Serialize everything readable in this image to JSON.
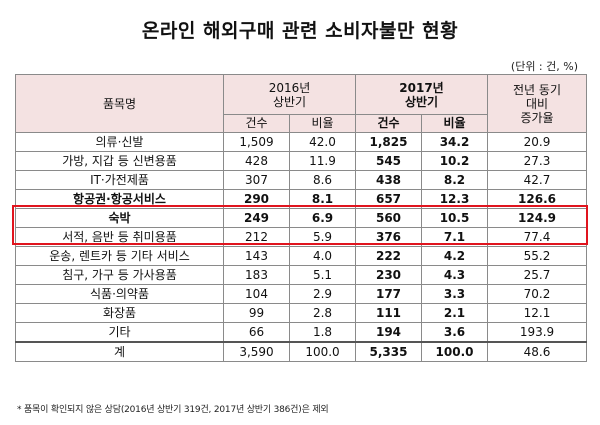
{
  "title": "온라인 해외구매 관련 소비자불만 현황",
  "unit": "(단위 : 건, %)",
  "header": {
    "item": "품목명",
    "period_2016": "2016년\n상반기",
    "period_2017": "2017년\n상반기",
    "growth": "전년 동기\n대비\n증가율",
    "count": "건수",
    "ratio": "비율"
  },
  "rows": [
    {
      "name": "의류·신발",
      "c2016": "1,509",
      "r2016": "42.0",
      "c2017": "1,825",
      "r2017": "34.2",
      "growth": "20.9"
    },
    {
      "name": "가방, 지갑 등 신변용품",
      "c2016": "428",
      "r2016": "11.9",
      "c2017": "545",
      "r2017": "10.2",
      "growth": "27.3"
    },
    {
      "name": "IT·가전제품",
      "c2016": "307",
      "r2016": "8.6",
      "c2017": "438",
      "r2017": "8.2",
      "growth": "42.7"
    },
    {
      "name": "항공권·항공서비스",
      "c2016": "290",
      "r2016": "8.1",
      "c2017": "657",
      "r2017": "12.3",
      "growth": "126.6"
    },
    {
      "name": "숙박",
      "c2016": "249",
      "r2016": "6.9",
      "c2017": "560",
      "r2017": "10.5",
      "growth": "124.9"
    },
    {
      "name": "서적, 음반 등 취미용품",
      "c2016": "212",
      "r2016": "5.9",
      "c2017": "376",
      "r2017": "7.1",
      "growth": "77.4"
    },
    {
      "name": "운송, 렌트카 등 기타 서비스",
      "c2016": "143",
      "r2016": "4.0",
      "c2017": "222",
      "r2017": "4.2",
      "growth": "55.2"
    },
    {
      "name": "침구, 가구 등 가사용품",
      "c2016": "183",
      "r2016": "5.1",
      "c2017": "230",
      "r2017": "4.3",
      "growth": "25.7"
    },
    {
      "name": "식품·의약품",
      "c2016": "104",
      "r2016": "2.9",
      "c2017": "177",
      "r2017": "3.3",
      "growth": "70.2"
    },
    {
      "name": "화장품",
      "c2016": "99",
      "r2016": "2.8",
      "c2017": "111",
      "r2017": "2.1",
      "growth": "12.1"
    },
    {
      "name": "기타",
      "c2016": "66",
      "r2016": "1.8",
      "c2017": "194",
      "r2017": "3.6",
      "growth": "193.9"
    }
  ],
  "total": {
    "name": "계",
    "c2016": "3,590",
    "r2016": "100.0",
    "c2017": "5,335",
    "r2017": "100.0",
    "growth": "48.6"
  },
  "highlight": {
    "color": "#e0141e"
  },
  "footnote": "* 품목이 확인되지 않은 상담(2016년 상반기 319건, 2017년 상반기 386건)은 제외"
}
